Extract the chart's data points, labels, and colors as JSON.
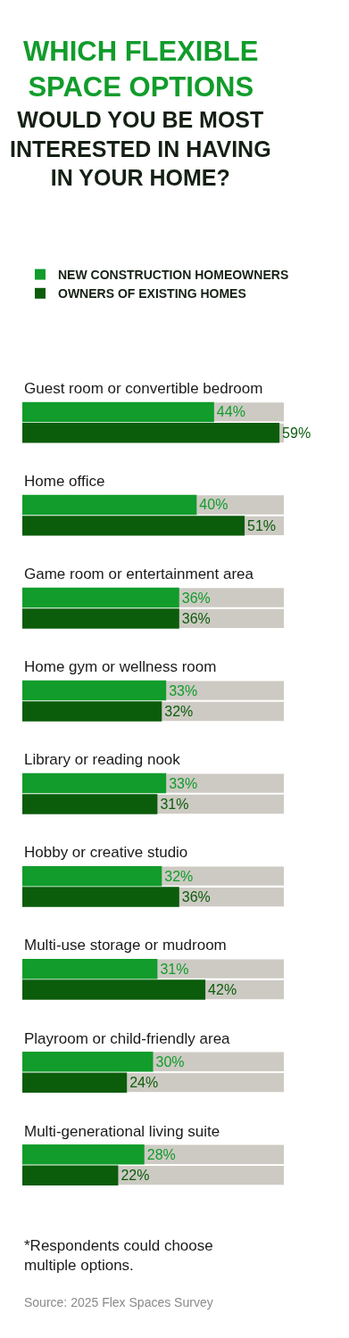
{
  "chart_data": {
    "type": "bar",
    "orientation": "horizontal",
    "title": "WHICH FLEXIBLE SPACE OPTIONS",
    "subtitle": "WOULD YOU BE MOST INTERESTED IN HAVING IN YOUR HOME?",
    "categories": [
      "Guest room or convertible bedroom",
      "Home office",
      "Game room or entertainment area",
      "Home gym or wellness room",
      "Library or reading nook",
      "Hobby or creative studio",
      "Multi-use storage or mudroom",
      "Playroom or child-friendly area",
      "Multi-generational living suite"
    ],
    "series": [
      {
        "name": "NEW CONSTRUCTION HOMEOWNERS",
        "color": "#119c2b",
        "values": [
          44,
          40,
          36,
          33,
          33,
          32,
          31,
          30,
          28
        ],
        "value_labels": [
          "44%",
          "40%",
          "36%",
          "33%",
          "33%",
          "32%",
          "31%",
          "30%",
          "28%"
        ]
      },
      {
        "name": "OWNERS OF EXISTING HOMES",
        "color": "#0b5c0b",
        "values": [
          59,
          51,
          36,
          32,
          31,
          36,
          42,
          24,
          22
        ],
        "value_labels": [
          "59%",
          "51%",
          "36%",
          "32%",
          "31%",
          "36%",
          "42%",
          "24%",
          "22%"
        ]
      }
    ],
    "xlim": [
      0,
      60
    ],
    "tick_labels": false,
    "grid": false,
    "legend": "top",
    "annotations": [
      "*Respondents could choose multiple options.",
      "Source: 2025 Flex Spaces Survey"
    ]
  }
}
